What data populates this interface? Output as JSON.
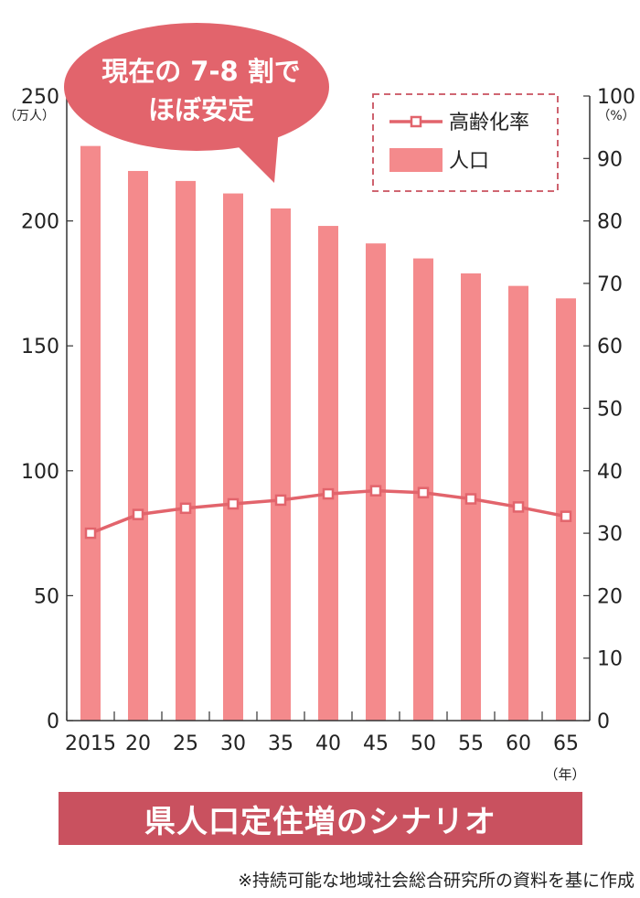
{
  "title": "県人口定住増のシナリオ",
  "source": "※持続可能な地域社会総合研究所の資料を基に作成",
  "annotation": "現在の 7-8 割でほぼ安定",
  "colors": {
    "bar": "#f48a8c",
    "line": "#e2646c",
    "marker_fill": "#ffffff",
    "annotation_bubble": "#e2646c",
    "title_banner": "#c9515f",
    "legend_border": "#c9515f",
    "axis": "#333333"
  },
  "chart_data": {
    "type": "bar",
    "categories": [
      "2015",
      "20",
      "25",
      "30",
      "35",
      "40",
      "45",
      "50",
      "55",
      "60",
      "65"
    ],
    "series": [
      {
        "name": "人口",
        "type": "bar",
        "axis": "left",
        "values": [
          230,
          220,
          216,
          211,
          205,
          198,
          191,
          185,
          179,
          174,
          169
        ]
      },
      {
        "name": "高齢化率",
        "type": "line",
        "axis": "right",
        "values": [
          30,
          33,
          34,
          34.7,
          35.3,
          36.3,
          36.8,
          36.5,
          35.5,
          34.2,
          32.7
        ]
      }
    ],
    "y_left": {
      "unit": "（万人）",
      "lim": [
        0,
        250
      ],
      "ticks": [
        0,
        50,
        100,
        150,
        200,
        250
      ]
    },
    "y_right": {
      "unit": "（%）",
      "lim": [
        0,
        100
      ],
      "ticks": [
        0,
        10,
        20,
        30,
        40,
        50,
        60,
        70,
        80,
        90,
        100
      ]
    },
    "x_unit": "（年）",
    "legend": {
      "position": "top-right",
      "line_label": "高齢化率",
      "bar_label": "人口"
    }
  }
}
